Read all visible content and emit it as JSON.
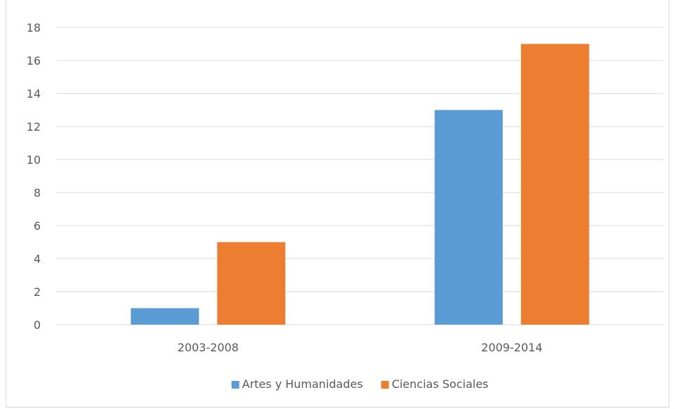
{
  "chart_data": {
    "type": "bar",
    "categories": [
      "2003-2008",
      "2009-2014"
    ],
    "series": [
      {
        "name": "Artes y Humanidades",
        "values": [
          1,
          13
        ],
        "color": "#5b9bd5"
      },
      {
        "name": "Ciencias Sociales",
        "values": [
          5,
          17
        ],
        "color": "#ed7d31"
      }
    ],
    "ylim": [
      0,
      18
    ],
    "yticks": [
      0,
      2,
      4,
      6,
      8,
      10,
      12,
      14,
      16,
      18
    ],
    "grid": true,
    "legend_position": "bottom",
    "gridline_color": "#d9d9d9"
  }
}
